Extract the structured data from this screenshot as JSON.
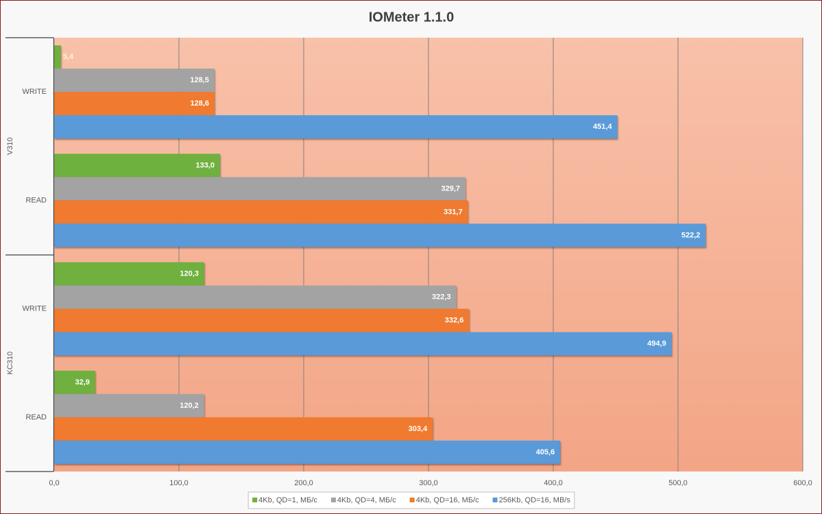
{
  "chart_data": {
    "type": "bar",
    "orientation": "horizontal",
    "title": "IOMeter 1.1.0",
    "groups": [
      {
        "name": "V310",
        "categories": [
          "WRITE",
          "READ"
        ]
      },
      {
        "name": "KC310",
        "categories": [
          "WRITE",
          "READ"
        ]
      }
    ],
    "series": [
      {
        "name": "4Kb, QD=1, МБ/с",
        "color": "#6fb03f",
        "values": [
          5.4,
          133.0,
          120.3,
          32.9
        ],
        "value_labels": [
          "5,4",
          "133,0",
          "120,3",
          "32,9"
        ]
      },
      {
        "name": "4Kb, QD=4, МБ/с",
        "color": "#a3a3a3",
        "values": [
          128.5,
          329.7,
          322.3,
          120.2
        ],
        "value_labels": [
          "128,5",
          "329,7",
          "322,3",
          "120,2"
        ]
      },
      {
        "name": "4Kb, QD=16, МБ/с",
        "color": "#ef7a30",
        "values": [
          128.6,
          331.7,
          332.6,
          303.4
        ],
        "value_labels": [
          "128,6",
          "331,7",
          "332,6",
          "303,4"
        ]
      },
      {
        "name": "256Kb, QD=16, MB/s",
        "color": "#5a9ad8",
        "values": [
          451.4,
          522.2,
          494.9,
          405.6
        ],
        "value_labels": [
          "451,4",
          "522,2",
          "494,9",
          "405,6"
        ]
      }
    ],
    "xlim": [
      0,
      600
    ],
    "xticks": [
      {
        "value": 0,
        "label": "0,0"
      },
      {
        "value": 100,
        "label": "100,0"
      },
      {
        "value": 200,
        "label": "200,0"
      },
      {
        "value": 300,
        "label": "300,0"
      },
      {
        "value": 400,
        "label": "400,0"
      },
      {
        "value": 500,
        "label": "500,0"
      },
      {
        "value": 600,
        "label": "600,0"
      }
    ],
    "grid": true,
    "legend": "bottom"
  }
}
